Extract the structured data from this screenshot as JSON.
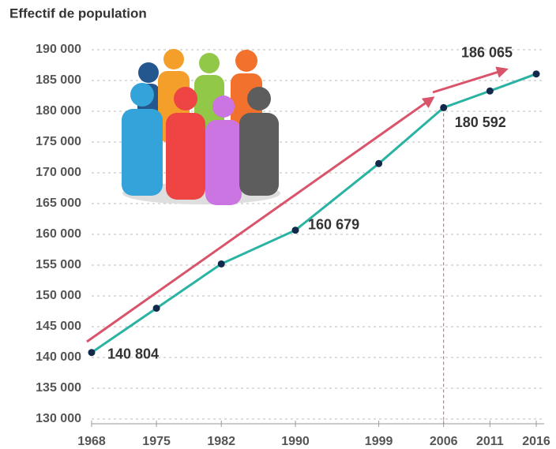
{
  "chart_data": {
    "type": "line",
    "title": "Effectif de population",
    "x": [
      1968,
      1975,
      1982,
      1990,
      1999,
      2006,
      2011,
      2016
    ],
    "series": [
      {
        "name": "Effectif de population",
        "color": "#2ab3a3",
        "marker_color": "#13294b",
        "values": [
          140804,
          148000,
          155200,
          160679,
          171500,
          180592,
          183300,
          186065
        ],
        "value_labels": [
          "140 804",
          null,
          null,
          "160 679",
          null,
          "180 592",
          null,
          "186 065"
        ]
      }
    ],
    "xlim": [
      1968,
      2016
    ],
    "xticks": [
      1968,
      1975,
      1982,
      1990,
      1999,
      2006,
      2011,
      2016
    ],
    "ylim": [
      130000,
      190000
    ],
    "yticks": [
      {
        "value": 130000,
        "label": "130 000"
      },
      {
        "value": 135000,
        "label": "135 000"
      },
      {
        "value": 140000,
        "label": "140 000"
      },
      {
        "value": 145000,
        "label": "145 000"
      },
      {
        "value": 150000,
        "label": "150 000"
      },
      {
        "value": 155000,
        "label": "155 000"
      },
      {
        "value": 160000,
        "label": "160 000"
      },
      {
        "value": 165000,
        "label": "165 000"
      },
      {
        "value": 170000,
        "label": "170 000"
      },
      {
        "value": 175000,
        "label": "175 000"
      },
      {
        "value": 180000,
        "label": "180 000"
      },
      {
        "value": 185000,
        "label": "185 000"
      },
      {
        "value": 190000,
        "label": "190 000"
      }
    ],
    "grid": true
  }
}
